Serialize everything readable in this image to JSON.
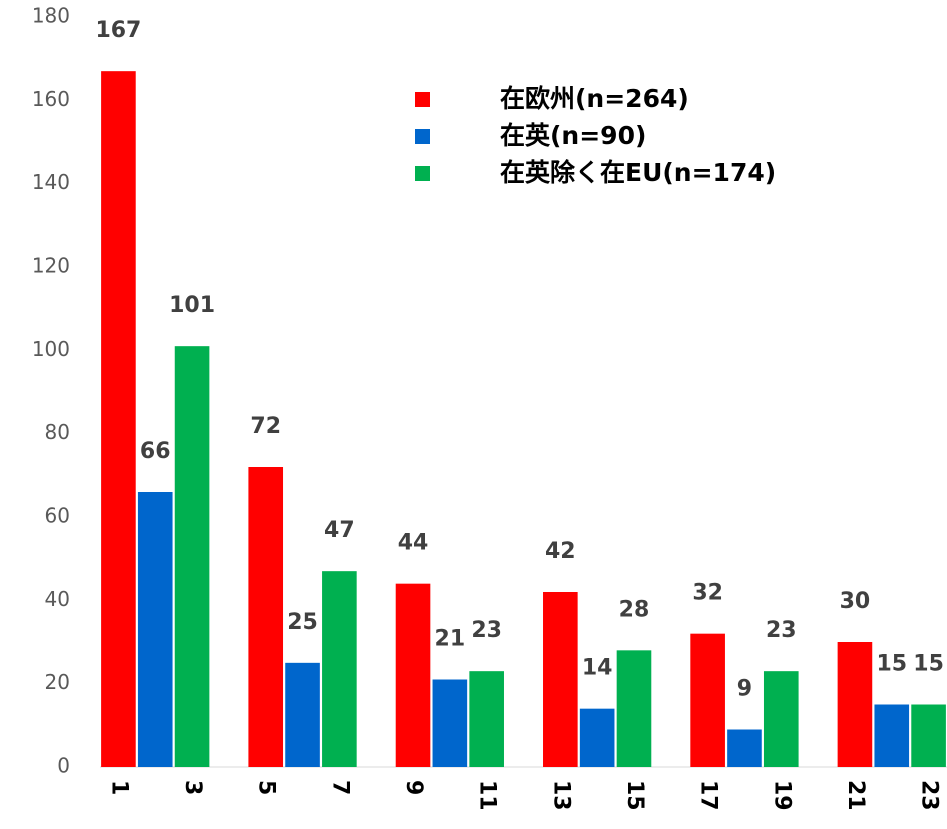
{
  "chart_data": {
    "type": "bar",
    "categories": [
      "1",
      null,
      "3",
      null,
      "5",
      null,
      "7",
      null,
      "9",
      null,
      "11",
      null,
      "13",
      null,
      "15",
      null,
      "17",
      null,
      "19",
      null,
      "21",
      null,
      "23"
    ],
    "series": [
      {
        "name": "在欧州(n=264)",
        "color": "#ff0000",
        "values": [
          167,
          null,
          null,
          null,
          72,
          null,
          null,
          null,
          44,
          null,
          null,
          null,
          42,
          null,
          null,
          null,
          32,
          null,
          null,
          null,
          30,
          null,
          null
        ]
      },
      {
        "name": "在英(n=90)",
        "color": "#0066cc",
        "values": [
          null,
          66,
          null,
          null,
          null,
          25,
          null,
          null,
          null,
          21,
          null,
          null,
          null,
          14,
          null,
          null,
          null,
          9,
          null,
          null,
          null,
          15,
          null
        ]
      },
      {
        "name": "在英除く在EU(n=174)",
        "color": "#00b050",
        "values": [
          null,
          null,
          101,
          null,
          null,
          null,
          47,
          null,
          null,
          null,
          23,
          null,
          null,
          null,
          28,
          null,
          null,
          null,
          23,
          null,
          null,
          null,
          15
        ]
      }
    ],
    "ylim": [
      0,
      180
    ],
    "yticks": [
      0,
      20,
      40,
      60,
      80,
      100,
      120,
      140,
      160,
      180
    ],
    "grid": false,
    "legend": "upper right"
  }
}
